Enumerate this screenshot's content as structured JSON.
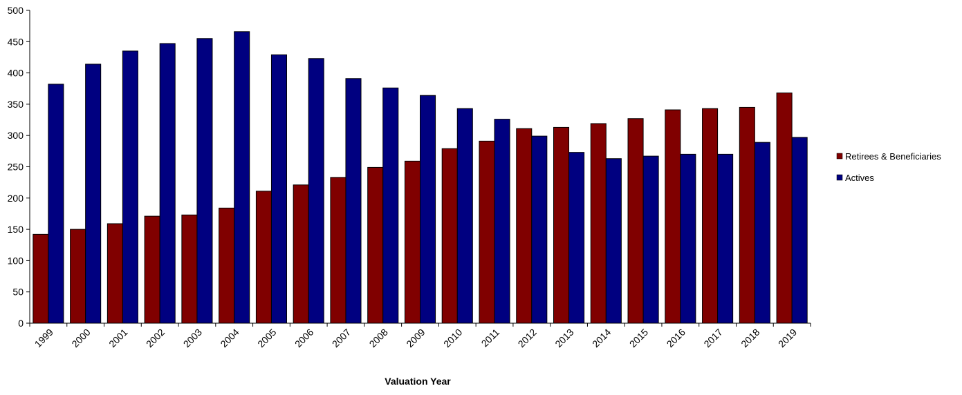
{
  "chart_data": {
    "type": "bar",
    "x_label": "Valuation Year",
    "categories": [
      "1999",
      "2000",
      "2001",
      "2002",
      "2003",
      "2004",
      "2005",
      "2006",
      "2007",
      "2008",
      "2009",
      "2010",
      "2011",
      "2012",
      "2013",
      "2014",
      "2015",
      "2016",
      "2017",
      "2018",
      "2019"
    ],
    "series": [
      {
        "name": "Retirees & Beneficiaries",
        "color": "#800000",
        "values": [
          142,
          150,
          159,
          171,
          173,
          184,
          211,
          221,
          233,
          249,
          259,
          279,
          291,
          311,
          313,
          319,
          327,
          341,
          343,
          345,
          368
        ]
      },
      {
        "name": "Actives",
        "color": "#000080",
        "values": [
          382,
          414,
          435,
          447,
          455,
          466,
          429,
          423,
          391,
          376,
          364,
          343,
          326,
          299,
          273,
          263,
          267,
          270,
          270,
          289,
          297
        ]
      }
    ],
    "ylim": [
      0,
      500
    ],
    "yticks": [
      0,
      50,
      100,
      150,
      200,
      250,
      300,
      350,
      400,
      450,
      500
    ],
    "grid": false,
    "legend": "right"
  }
}
